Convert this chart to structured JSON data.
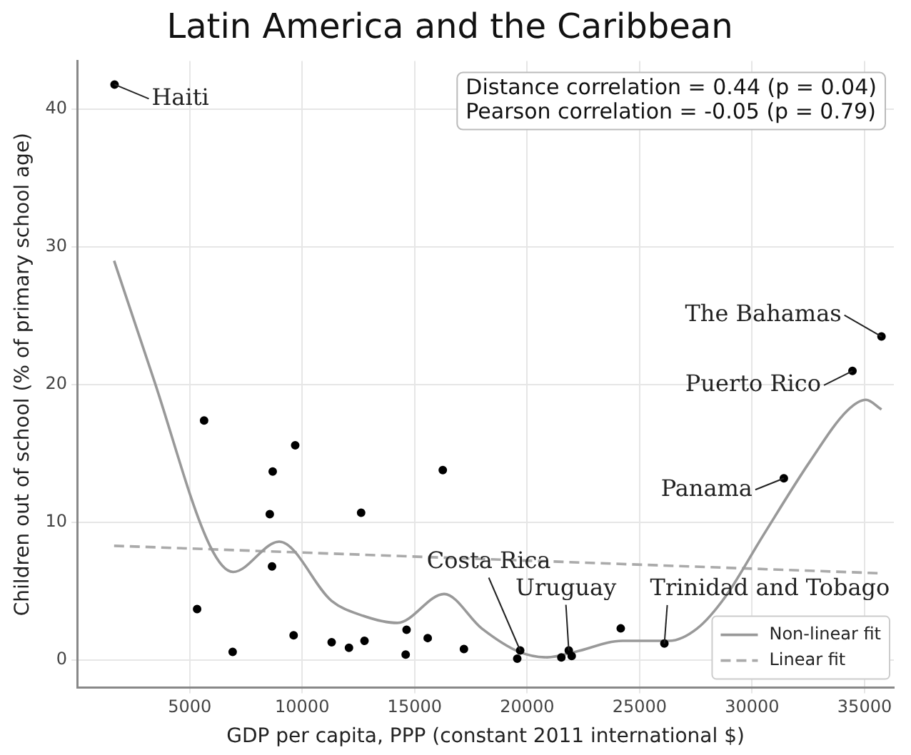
{
  "chart_data": {
    "type": "scatter",
    "title": "Latin America and the Caribbean",
    "xlabel": "GDP per capita, PPP (constant 2011 international $)",
    "ylabel": "Children out of school (% of primary school age)",
    "xlim": [
      0,
      36300
    ],
    "ylim": [
      -2,
      43.5
    ],
    "xticks": [
      5000,
      10000,
      15000,
      20000,
      25000,
      30000,
      35000
    ],
    "yticks": [
      0,
      10,
      20,
      30,
      40
    ],
    "grid": true,
    "legend": "bottom right",
    "series": [
      {
        "marker": "circle",
        "color": "#000000",
        "x": [
          1660,
          5640,
          9690,
          8690,
          8560,
          12620,
          16250,
          8660,
          5330,
          6910,
          9620,
          11310,
          12080,
          12770,
          14640,
          14600,
          15580,
          17190,
          19690,
          19560,
          21520,
          21850,
          21980,
          24160,
          26100,
          31410,
          35750,
          34460
        ],
        "values": [
          41.8,
          17.4,
          15.6,
          13.7,
          10.6,
          10.7,
          13.8,
          6.8,
          3.7,
          0.6,
          1.8,
          1.3,
          0.9,
          1.4,
          2.2,
          0.4,
          1.6,
          0.8,
          0.7,
          0.1,
          0.2,
          0.7,
          0.3,
          2.3,
          1.2,
          13.2,
          23.5,
          21.0
        ]
      },
      {
        "type": "line",
        "name": "Non-linear fit",
        "color": "#999999",
        "line_style": "solid",
        "x": [
          1640,
          3400,
          5900,
          6930,
          8980,
          11310,
          12560,
          14230,
          16310,
          17980,
          19640,
          20890,
          22140,
          24230,
          26310,
          27560,
          28810,
          30470,
          32560,
          34220,
          35060,
          35750
        ],
        "values": [
          29.0,
          20.4,
          8.3,
          6.4,
          8.6,
          4.3,
          3.3,
          2.7,
          4.8,
          2.3,
          0.6,
          0.2,
          0.6,
          1.4,
          1.4,
          2.3,
          4.6,
          9.0,
          14.4,
          18.1,
          18.9,
          18.2
        ]
      },
      {
        "type": "line",
        "name": "Linear fit",
        "color": "#aaaaaa",
        "line_style": "dashed",
        "x": [
          1640,
          35790
        ],
        "values": [
          8.3,
          6.3
        ]
      }
    ],
    "annotations": [
      {
        "text": "Haiti",
        "x": 1660,
        "y": 41.8
      },
      {
        "text": "The Bahamas",
        "x": 35750,
        "y": 23.5
      },
      {
        "text": "Puerto Rico",
        "x": 34460,
        "y": 21.0
      },
      {
        "text": "Panama",
        "x": 31410,
        "y": 13.2
      },
      {
        "text": "Costa Rica",
        "x": 19690,
        "y": 0.7
      },
      {
        "text": "Uruguay",
        "x": 21850,
        "y": 0.7
      },
      {
        "text": "Trinidad and Tobago",
        "x": 26100,
        "y": 1.2
      },
      "Distance correlation = 0.44 (p = 0.04)",
      "Pearson correlation = -0.05 (p = 0.79)"
    ]
  }
}
